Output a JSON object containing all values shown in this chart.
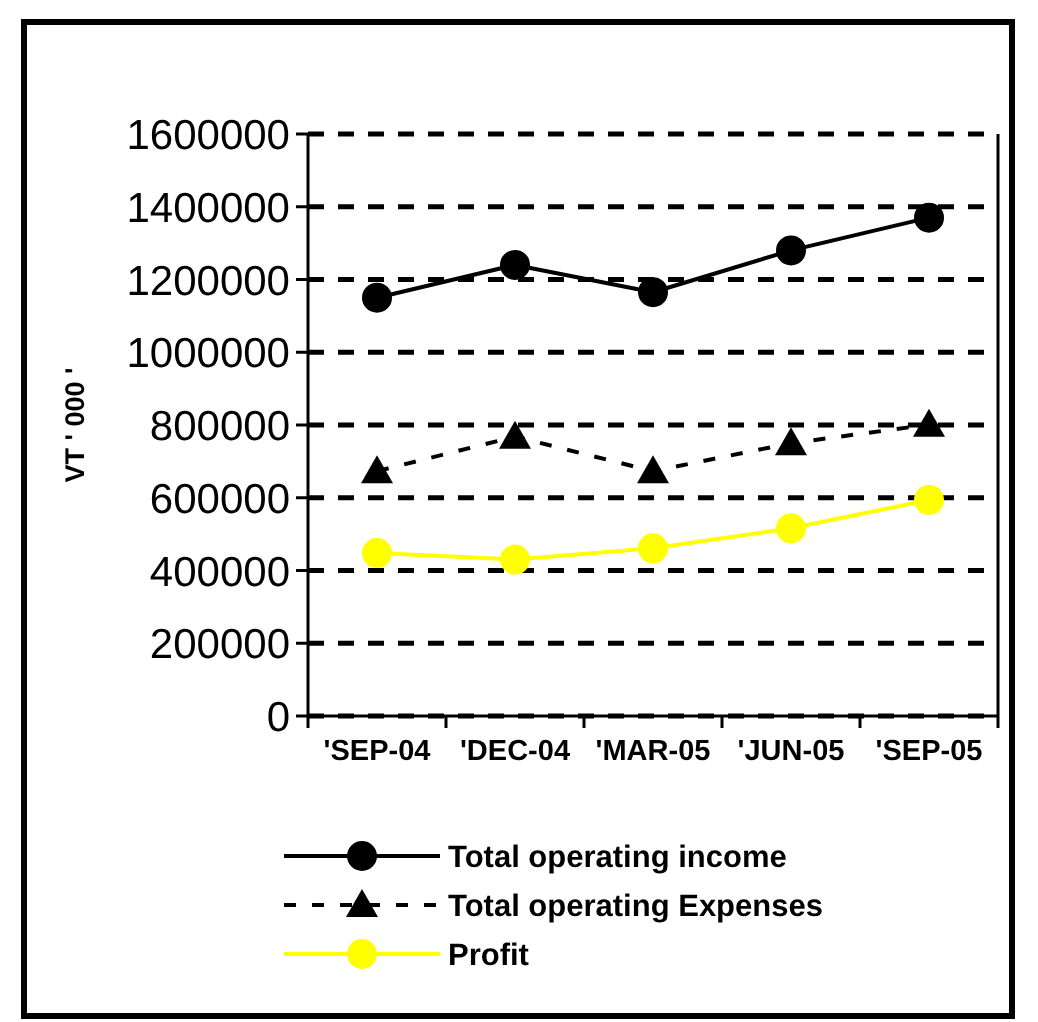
{
  "chart_data": {
    "type": "line",
    "categories": [
      "'SEP-04",
      "'DEC-04",
      "'MAR-05",
      "'JUN-05",
      "'SEP-05"
    ],
    "ylabel": "VT ' 000 '",
    "series": [
      {
        "name": "Total operating income",
        "color": "#000000",
        "marker": "circle",
        "line_style": "solid",
        "values": [
          1150000,
          1240000,
          1165000,
          1280000,
          1370000
        ]
      },
      {
        "name": "Total operating Expenses",
        "color": "#000000",
        "marker": "triangle",
        "line_style": "dashed",
        "values": [
          673000,
          768000,
          673000,
          750000,
          801000
        ]
      },
      {
        "name": "Profit",
        "color": "#ffff00",
        "marker": "circle",
        "line_style": "solid",
        "values": [
          448000,
          430000,
          461000,
          516000,
          594000
        ]
      }
    ],
    "ylim": [
      0,
      1600000
    ],
    "yticks": [
      0,
      200000,
      400000,
      600000,
      800000,
      1000000,
      1200000,
      1400000,
      1600000
    ],
    "grid": "y",
    "legend": "bottom"
  }
}
